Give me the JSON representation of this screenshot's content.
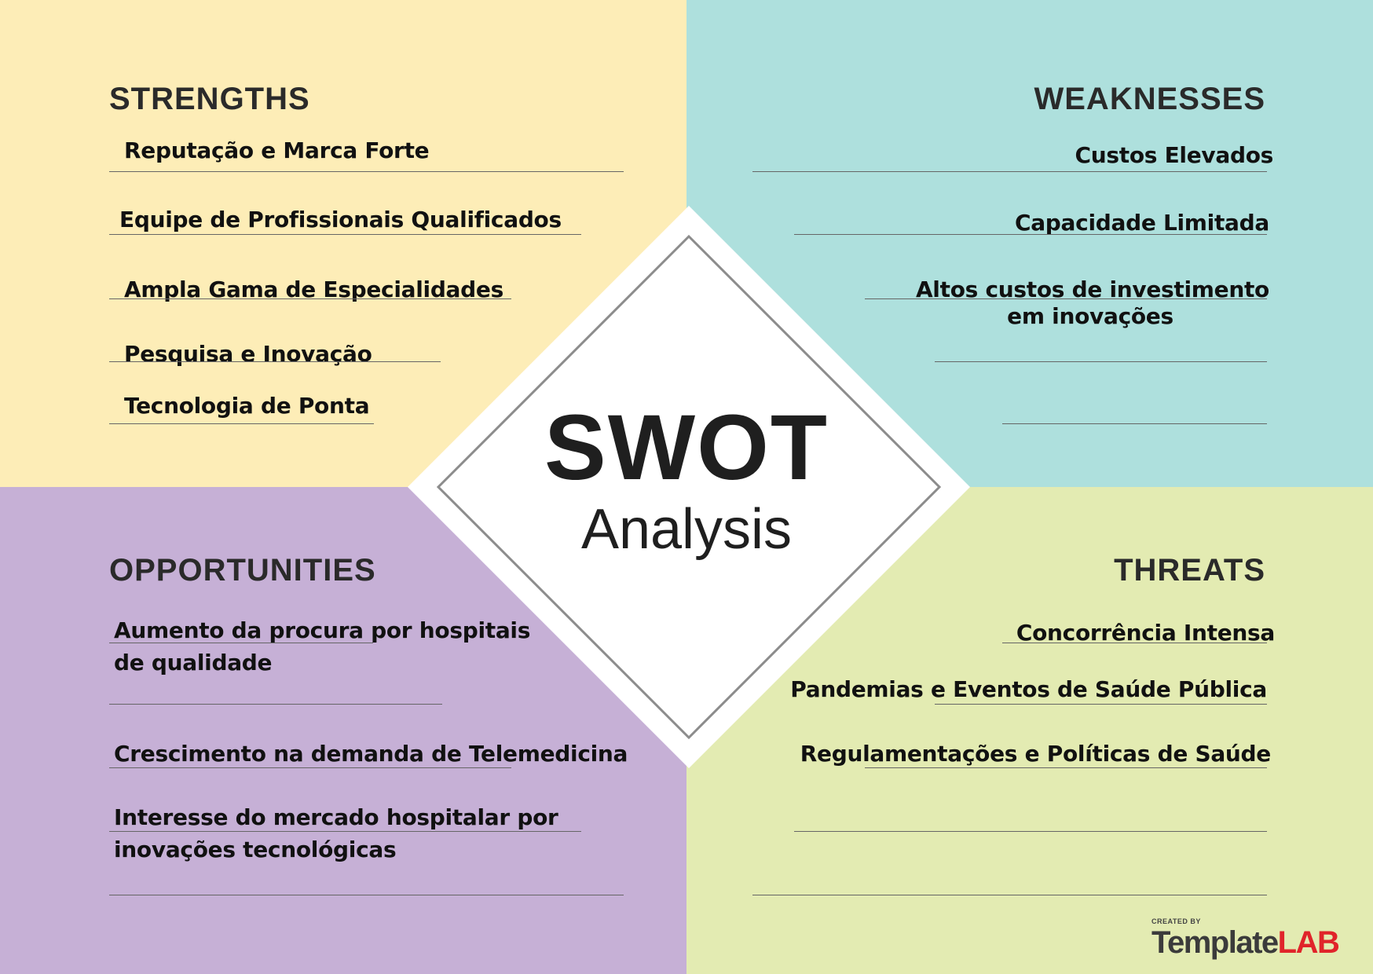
{
  "center": {
    "title": "SWOT",
    "subtitle": "Analysis"
  },
  "strengths": {
    "heading": "STRENGTHS",
    "items": [
      "Reputação e Marca Forte",
      "Equipe de Profissionais Qualificados",
      "Ampla Gama de Especialidades",
      "Pesquisa e Inovação",
      "Tecnologia de Ponta"
    ]
  },
  "weaknesses": {
    "heading": "WEAKNESSES",
    "items": [
      "Custos Elevados",
      "Capacidade Limitada",
      "Altos custos de investimento",
      "em inovações"
    ]
  },
  "opportunities": {
    "heading": "OPPORTUNITIES",
    "items": [
      "Aumento da procura por hospitais",
      "de qualidade",
      "Crescimento na demanda de Telemedicina",
      "Interesse do mercado hospitalar por",
      "inovações tecnológicas"
    ]
  },
  "threats": {
    "heading": "THREATS",
    "items": [
      "Concorrência Intensa",
      "Pandemias e Eventos de Saúde Pública",
      "Regulamentações e Políticas de Saúde"
    ]
  },
  "logo": {
    "small": "CREATED BY",
    "part1": "Template",
    "part2": "LAB"
  },
  "colors": {
    "strengths": "#fdedb7",
    "weaknesses": "#aee0dd",
    "opportunities": "#c6b0d6",
    "threats": "#e3ebb2",
    "logo_accent": "#e0242a"
  }
}
